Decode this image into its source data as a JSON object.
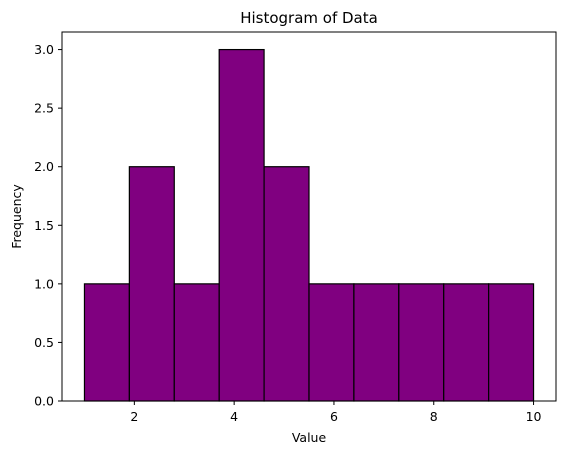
{
  "chart_data": {
    "type": "bar",
    "title": "Histogram of Data",
    "xlabel": "Value",
    "ylabel": "Frequency",
    "bin_edges": [
      1.0,
      1.9,
      2.8,
      3.7,
      4.6,
      5.5,
      6.4,
      7.3,
      8.2,
      9.1,
      10.0
    ],
    "values": [
      1,
      2,
      1,
      3,
      2,
      1,
      1,
      1,
      1,
      1
    ],
    "xlim": [
      0.55,
      10.45
    ],
    "ylim": [
      0,
      3.15
    ],
    "xticks": [
      2,
      4,
      6,
      8,
      10
    ],
    "xtick_labels": [
      "2",
      "4",
      "6",
      "8",
      "10"
    ],
    "yticks": [
      0,
      0.5,
      1,
      1.5,
      2,
      2.5,
      3
    ],
    "ytick_labels": [
      "0.0",
      "0.5",
      "1.0",
      "1.5",
      "2.0",
      "2.5",
      "3.0"
    ],
    "bar_color": "#800080",
    "edge_color": "#000000",
    "grid": false,
    "legend": "none"
  }
}
